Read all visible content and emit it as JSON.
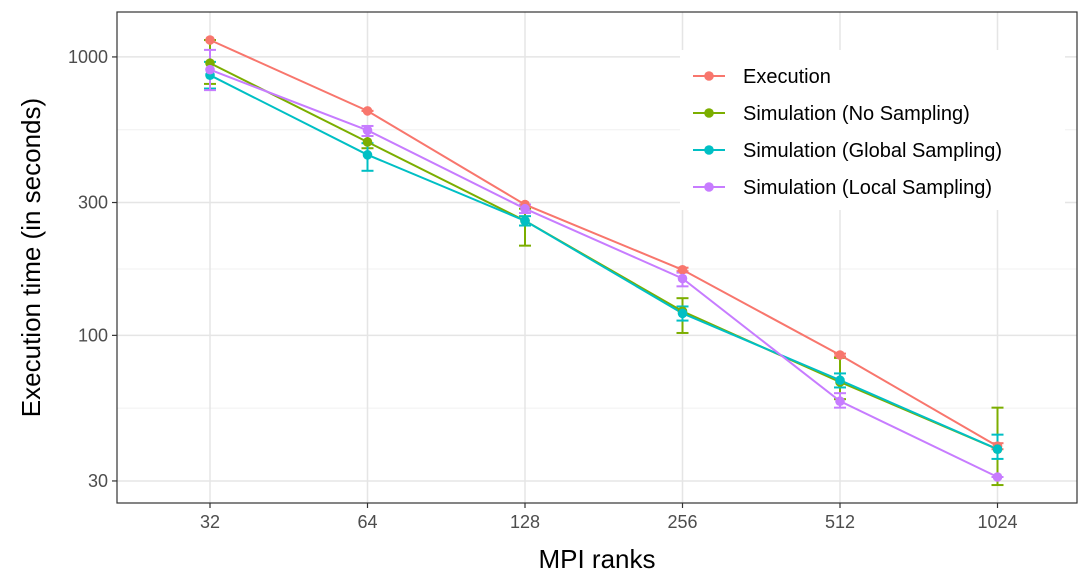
{
  "chart_data": {
    "type": "line",
    "xlabel": "MPI ranks",
    "ylabel": "Execution time (in seconds)",
    "x_scale": "log2",
    "y_scale": "log10",
    "categories": [
      "32",
      "64",
      "128",
      "256",
      "512",
      "1024"
    ],
    "y_ticks": [
      30,
      100,
      300,
      1000
    ],
    "y_tick_labels": [
      "30",
      "100",
      "300",
      "1000"
    ],
    "ylim": [
      25,
      1450
    ],
    "grid": true,
    "legend_position": "top-right",
    "series": [
      {
        "name": "Execution",
        "color": "#F8766D",
        "values": [
          1150,
          640,
          295,
          172,
          85,
          40
        ],
        "err_low": [
          1150,
          640,
          295,
          170,
          84,
          39
        ],
        "err_high": [
          1150,
          640,
          295,
          175,
          86,
          41
        ]
      },
      {
        "name": "Simulation (No Sampling)",
        "color": "#7CAE00",
        "values": [
          950,
          495,
          258,
          122,
          68,
          39
        ],
        "err_low": [
          800,
          470,
          210,
          102,
          59,
          29
        ],
        "err_high": [
          1150,
          520,
          285,
          136,
          83,
          55
        ]
      },
      {
        "name": "Simulation (Global Sampling)",
        "color": "#00BFC4",
        "values": [
          860,
          445,
          258,
          120,
          69,
          39
        ],
        "err_low": [
          770,
          390,
          248,
          113,
          65,
          36
        ],
        "err_high": [
          960,
          490,
          268,
          127,
          73,
          44
        ]
      },
      {
        "name": "Simulation (Local Sampling)",
        "color": "#C77CFF",
        "values": [
          900,
          545,
          285,
          160,
          58,
          31
        ],
        "err_low": [
          760,
          520,
          275,
          150,
          55,
          31
        ],
        "err_high": [
          1060,
          565,
          295,
          168,
          62,
          31
        ]
      }
    ]
  }
}
